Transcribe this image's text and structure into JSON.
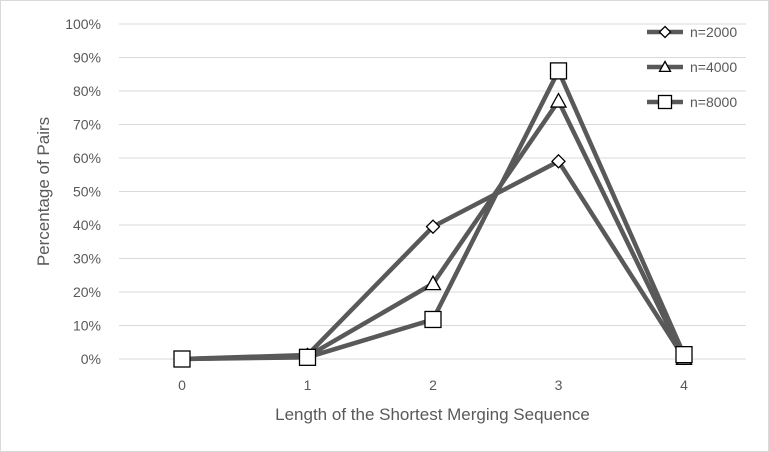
{
  "chart_data": {
    "type": "line",
    "title": "",
    "xlabel": "Length of the Shortest Merging Sequence",
    "ylabel": "Percentage of Pairs",
    "x": [
      0,
      1,
      2,
      3,
      4
    ],
    "x_tick_labels": [
      "0",
      "1",
      "2",
      "3",
      "4"
    ],
    "ylim": [
      0,
      100
    ],
    "y_tick_values": [
      0,
      10,
      20,
      30,
      40,
      50,
      60,
      70,
      80,
      90,
      100
    ],
    "y_tick_labels": [
      "0%",
      "10%",
      "20%",
      "30%",
      "40%",
      "50%",
      "60%",
      "70%",
      "80%",
      "90%",
      "100%"
    ],
    "grid": "horizontal",
    "legend_position": "top-right",
    "line_color": "#595959",
    "series": [
      {
        "name": "n=2000",
        "marker": "diamond",
        "values": [
          0,
          1.2,
          39.5,
          59,
          0.3
        ]
      },
      {
        "name": "n=4000",
        "marker": "triangle",
        "values": [
          0,
          0.8,
          22.5,
          77,
          0.2
        ]
      },
      {
        "name": "n=8000",
        "marker": "square",
        "values": [
          0,
          0.5,
          11.8,
          86,
          1.3
        ]
      }
    ]
  }
}
